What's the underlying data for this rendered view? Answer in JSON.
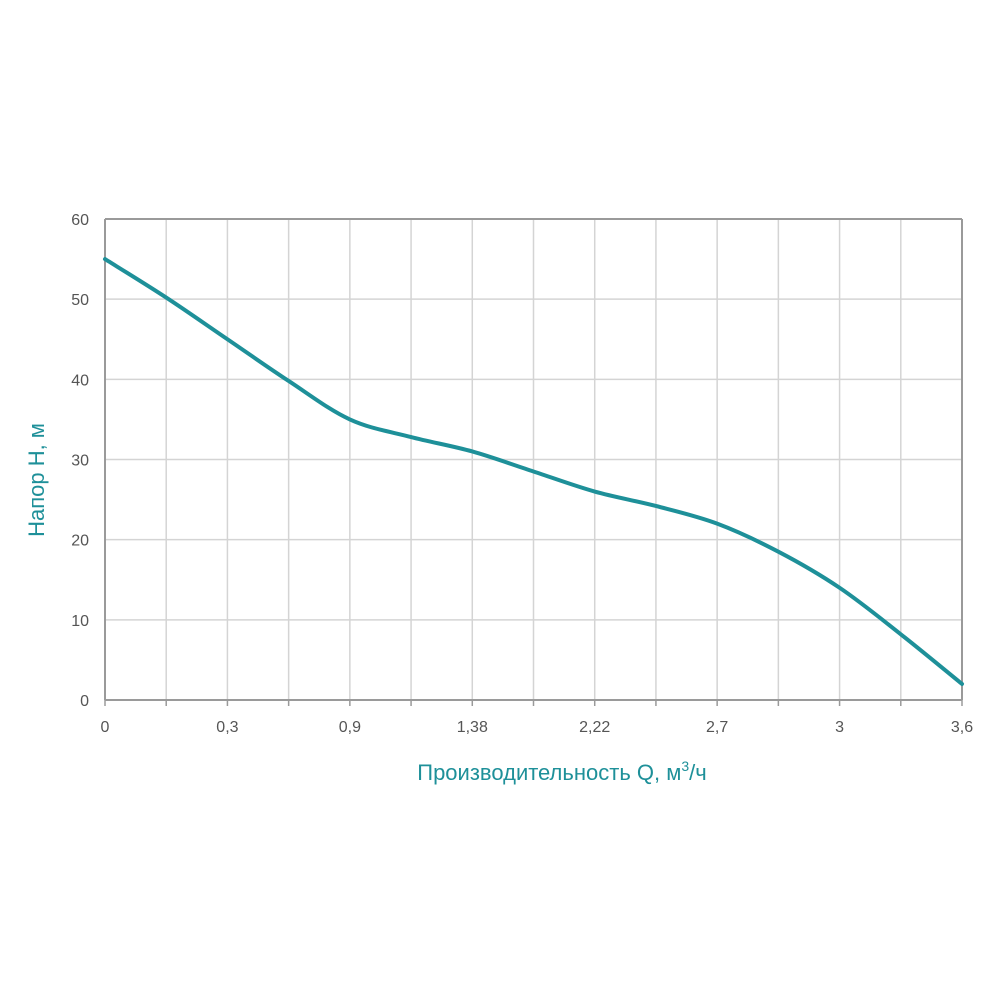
{
  "chart_data": {
    "type": "line",
    "xlabel": "Производительность Q, м",
    "xlabel_sup": "3",
    "xlabel_tail": "/ч",
    "ylabel": "Напор H, м",
    "x_tick_labels": [
      "0",
      "",
      "0,3",
      "",
      "0,9",
      "",
      "1,38",
      "",
      "2,22",
      "",
      "2,7",
      "",
      "3",
      "",
      "3,6"
    ],
    "y_ticks": [
      0,
      10,
      20,
      30,
      40,
      50,
      60
    ],
    "ylim": [
      0,
      60
    ],
    "grid": true,
    "series": [
      {
        "color": "#1e9099",
        "points": [
          [
            0,
            55
          ],
          [
            1,
            50.2
          ],
          [
            2,
            45
          ],
          [
            3,
            39.8
          ],
          [
            4,
            35
          ],
          [
            5,
            32.8
          ],
          [
            6,
            31
          ],
          [
            7,
            28.5
          ],
          [
            8,
            26
          ],
          [
            9,
            24.2
          ],
          [
            10,
            22
          ],
          [
            11,
            18.5
          ],
          [
            12,
            14
          ],
          [
            13,
            8.2
          ],
          [
            14,
            2
          ]
        ]
      }
    ]
  },
  "colors": {
    "accent": "#1e9099",
    "axis": "#9a9a9a",
    "grid": "#d4d4d4",
    "tick_text": "#555555"
  }
}
